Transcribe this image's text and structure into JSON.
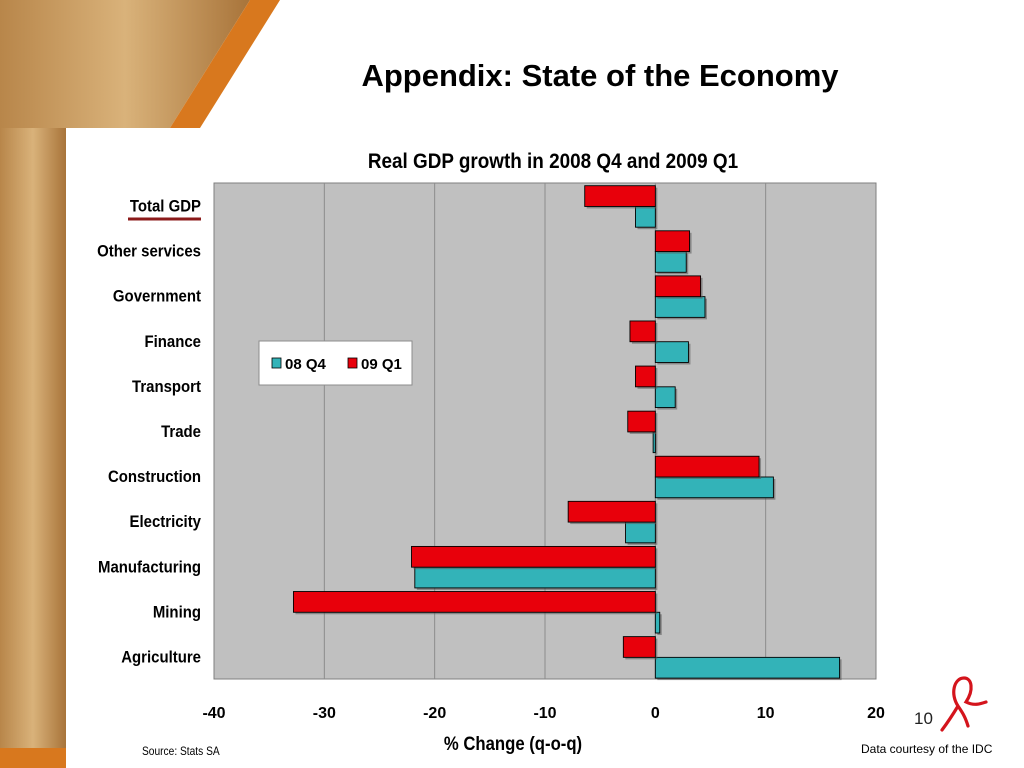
{
  "slide": {
    "title": "Appendix: State of the Economy",
    "source": "Source: Stats SA",
    "courtesy": "Data courtesy of the IDC",
    "page_number": "10"
  },
  "colors": {
    "series_1": "#33b3b8",
    "series_2": "#e8000b",
    "plot_background": "#c0c0c0",
    "accent": "#d8781e",
    "highlight_underline": "#8b1a1a"
  },
  "icons": {
    "logo": "red-ribbon-logo"
  },
  "chart_data": {
    "type": "bar",
    "orientation": "horizontal",
    "title": "Real GDP growth in 2008 Q4 and 2009 Q1",
    "xlabel": "% Change (q-o-q)",
    "ylabel": "",
    "xlim": [
      -40,
      20
    ],
    "xticks": [
      "-40",
      "-30",
      "-20",
      "-10",
      "0",
      "10",
      "20"
    ],
    "xtick_values": [
      -40,
      -30,
      -20,
      -10,
      0,
      10,
      20
    ],
    "grid": true,
    "legend_position": "center-left",
    "highlighted_category": "Total GDP",
    "categories": [
      "Total GDP",
      "Other services",
      "Government",
      "Finance ",
      "Transport",
      "Trade",
      "Construction",
      "Electricity",
      "Manufacturing",
      "Mining",
      "Agriculture"
    ],
    "series": [
      {
        "name": "08 Q4",
        "values": [
          -1.8,
          2.8,
          4.5,
          3.0,
          1.8,
          -0.2,
          10.7,
          -2.7,
          -21.8,
          0.4,
          16.7
        ]
      },
      {
        "name": "09 Q1",
        "values": [
          -6.4,
          3.1,
          4.1,
          -2.3,
          -1.8,
          -2.5,
          9.4,
          -7.9,
          -22.1,
          -32.8,
          -2.9
        ]
      }
    ]
  }
}
